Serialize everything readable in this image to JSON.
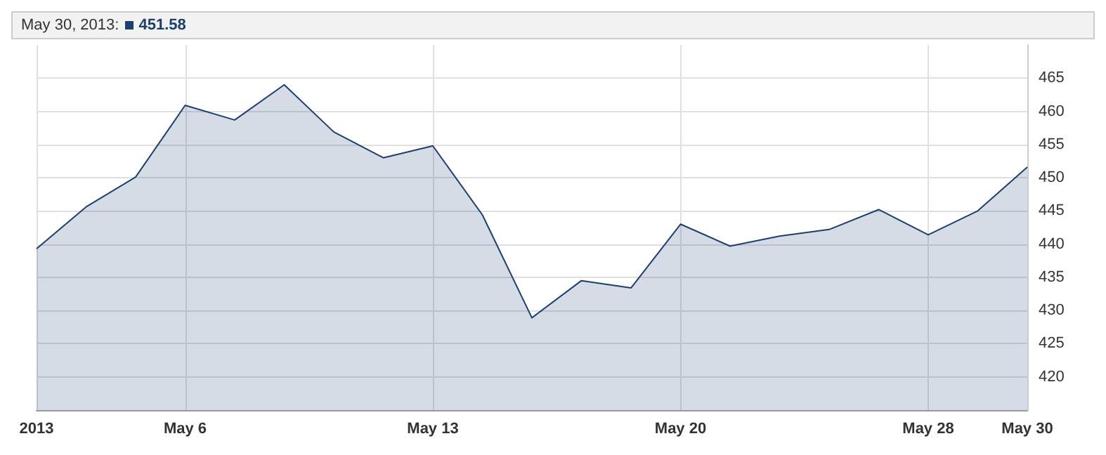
{
  "chart_data": {
    "type": "area",
    "categories": [
      "2013",
      null,
      null,
      "May 6",
      null,
      null,
      null,
      null,
      "May 13",
      null,
      null,
      null,
      null,
      "May 20",
      null,
      null,
      null,
      null,
      "May 28",
      null,
      "May 30"
    ],
    "series": [
      {
        "color": "#1d3f6e",
        "values": [
          439.3,
          445.6,
          450.1,
          460.9,
          458.7,
          464.0,
          456.9,
          453.0,
          454.8,
          444.4,
          428.9,
          434.5,
          433.4,
          443.0,
          439.7,
          441.2,
          442.2,
          445.2,
          441.4,
          445.0,
          451.6
        ]
      }
    ],
    "ylim": [
      415,
      470
    ],
    "yticks": [
      420,
      425,
      430,
      435,
      440,
      445,
      450,
      455,
      460,
      465
    ],
    "grid": true,
    "marker": "none",
    "annotations": [
      "May 30, 2013:",
      "451.58"
    ]
  }
}
